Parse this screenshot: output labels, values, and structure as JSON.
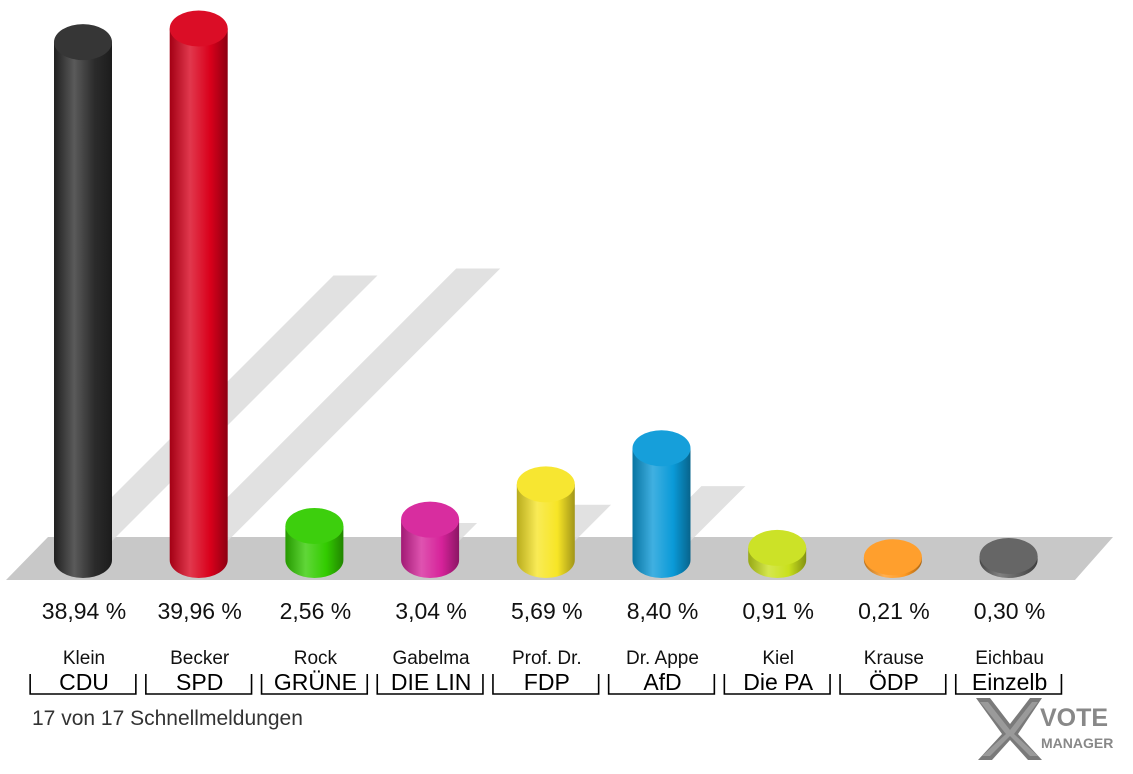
{
  "chart_data": {
    "type": "bar",
    "style": "3d-cylinder",
    "categories": [
      "CDU",
      "SPD",
      "GRÜNE",
      "DIE LIN",
      "FDP",
      "AfD",
      "Die PA",
      "ÖDP",
      "Einzelb"
    ],
    "candidates": [
      "Klein",
      "Becker",
      "Rock",
      "Gabelma",
      "Prof. Dr.",
      "Dr. Appe",
      "Kiel",
      "Krause",
      "Eichbau"
    ],
    "values": [
      38.94,
      39.96,
      2.56,
      3.04,
      5.69,
      8.4,
      0.91,
      0.21,
      0.3
    ],
    "value_labels": [
      "38,94 %",
      "39,96 %",
      "2,56 %",
      "3,04 %",
      "5,69 %",
      "8,40 %",
      "0,91 %",
      "0,21 %",
      "0,30 %"
    ],
    "colors": [
      "#2b2b2b",
      "#d9001b",
      "#33cc00",
      "#d6229a",
      "#f7e526",
      "#0a9ad8",
      "#c9e01c",
      "#ff9a22",
      "#5e5e5e"
    ],
    "title": "",
    "xlabel": "",
    "ylabel": "",
    "ylim": [
      0,
      40
    ],
    "grid": false,
    "legend": "none"
  },
  "footer": {
    "status": "17 von 17 Schnellmeldungen"
  },
  "logo": {
    "line1": "VOTE",
    "line2": "MANAGER"
  }
}
